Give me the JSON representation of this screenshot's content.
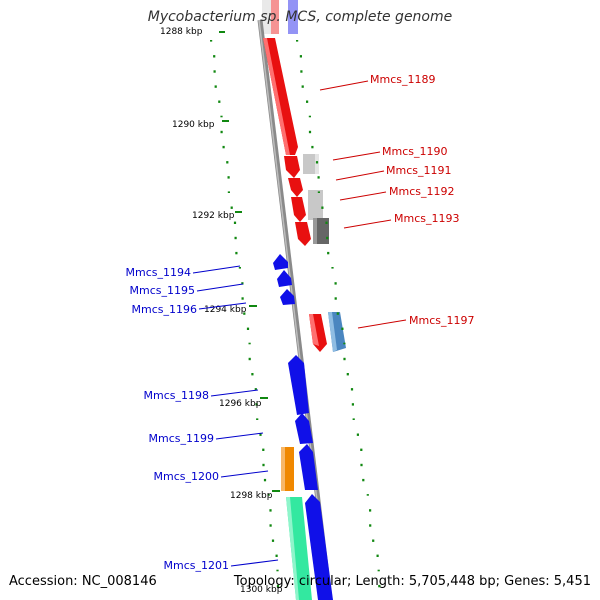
{
  "title": "Mycobacterium sp. MCS, complete genome",
  "footer": {
    "accession": "Accession: NC_008146",
    "summary": "Topology: circular; Length: 5,705,448 bp; Genes: 5,451"
  },
  "ticks": [
    {
      "label": "1288 kbp",
      "kbp": 1288
    },
    {
      "label": "1290 kbp",
      "kbp": 1290
    },
    {
      "label": "1292 kbp",
      "kbp": 1292
    },
    {
      "label": "1294 kbp",
      "kbp": 1294
    },
    {
      "label": "1296 kbp",
      "kbp": 1296
    },
    {
      "label": "1298 kbp",
      "kbp": 1298
    },
    {
      "label": "1300 kbp",
      "kbp": 1300
    }
  ],
  "genes": [
    {
      "label": "Mmcs_1189",
      "strand": "+",
      "color": "#e81010"
    },
    {
      "label": "Mmcs_1190",
      "strand": "+",
      "color": "#e81010"
    },
    {
      "label": "Mmcs_1191",
      "strand": "+",
      "color": "#e81010"
    },
    {
      "label": "Mmcs_1192",
      "strand": "+",
      "color": "#e81010"
    },
    {
      "label": "Mmcs_1193",
      "strand": "+",
      "color": "#e81010"
    },
    {
      "label": "Mmcs_1194",
      "strand": "-",
      "color": "#1010e8"
    },
    {
      "label": "Mmcs_1195",
      "strand": "-",
      "color": "#1010e8"
    },
    {
      "label": "Mmcs_1196",
      "strand": "-",
      "color": "#1010e8"
    },
    {
      "label": "Mmcs_1197",
      "strand": "+",
      "color": "#e81010"
    },
    {
      "label": "Mmcs_1198",
      "strand": "-",
      "color": "#1010e8"
    },
    {
      "label": "Mmcs_1199",
      "strand": "-",
      "color": "#1010e8"
    },
    {
      "label": "Mmcs_1200",
      "strand": "-",
      "color": "#1010e8"
    },
    {
      "label": "Mmcs_1201",
      "strand": "-",
      "color": "#1010e8"
    }
  ],
  "colors": {
    "forward_cds": "#e81010",
    "reverse_cds": "#1010e8",
    "backbone": "#888888",
    "gc_dots": "#118811",
    "gray_light": "#c8c8c8",
    "gray_dark": "#666666",
    "steelblue": "#4a86c0",
    "orange": "#f08800",
    "seagreen": "#33e8a0",
    "label_red": "#cc0000",
    "label_blue": "#0000cc"
  }
}
